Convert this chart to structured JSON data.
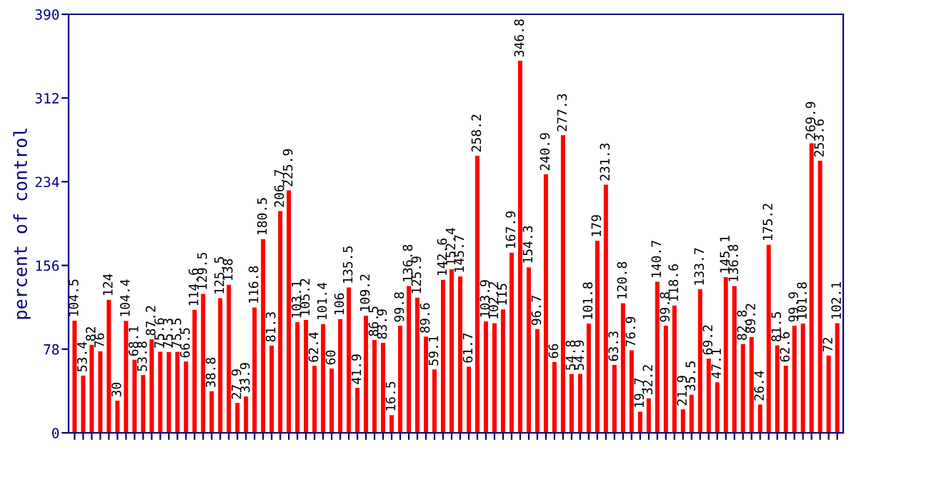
{
  "chart_data": {
    "type": "bar",
    "ylabel": "percent of control",
    "categories": [
      null,
      null,
      null,
      null,
      null,
      null,
      null,
      null,
      null,
      null,
      null,
      null,
      null,
      null,
      null,
      null,
      null,
      null,
      null,
      null,
      null,
      null,
      null,
      null,
      null,
      null,
      null,
      null,
      null,
      null,
      null,
      null,
      null,
      null,
      null,
      null,
      null,
      null,
      null,
      null,
      null,
      null,
      null,
      null,
      null,
      null,
      null,
      null,
      null,
      null,
      null,
      null,
      null,
      null,
      null,
      null,
      null,
      null,
      null,
      null,
      null,
      null,
      null,
      null,
      null,
      null,
      null,
      null,
      null,
      null,
      null,
      null,
      null,
      null,
      null,
      null,
      null,
      null,
      null,
      null,
      null,
      null,
      null,
      null,
      null,
      null,
      null,
      null,
      null,
      null
    ],
    "values": [
      104.5,
      53.4,
      82,
      76,
      124,
      30,
      104.4,
      68.1,
      53.8,
      87.2,
      75.6,
      75.3,
      75.5,
      66.5,
      114.6,
      129.5,
      38.8,
      125.5,
      138,
      27.9,
      33.9,
      116.8,
      180.5,
      81.3,
      206.7,
      225.9,
      103.1,
      105.2,
      62.4,
      101.4,
      60,
      106,
      135.5,
      41.9,
      109.2,
      86.5,
      83.9,
      16.5,
      99.8,
      136.8,
      125.9,
      89.6,
      59.1,
      142.6,
      152.4,
      145.7,
      61.7,
      258.2,
      103.9,
      102.2,
      115,
      167.9,
      346.8,
      154.3,
      96.7,
      240.9,
      66,
      277.3,
      54.8,
      54.9,
      101.8,
      179,
      231.3,
      63.3,
      120.8,
      76.9,
      19.7,
      32.2,
      140.7,
      99.8,
      118.6,
      21.9,
      35.5,
      133.7,
      69.2,
      47.1,
      145.1,
      136.8,
      82.8,
      89.2,
      26.4,
      175.2,
      81.5,
      62.6,
      99.9,
      101.8,
      269.9,
      253.6,
      72,
      102.1
    ],
    "color": "#ff0000",
    "data_labels": true,
    "ylim": [
      0,
      390
    ],
    "yticks": [
      0,
      78,
      156,
      234,
      312,
      390
    ],
    "grid": false,
    "legend": false
  }
}
